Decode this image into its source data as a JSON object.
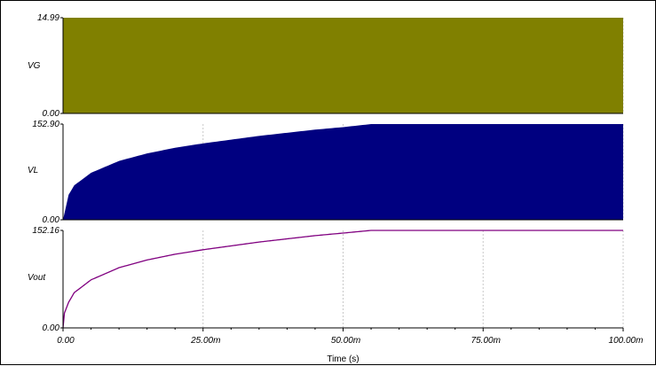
{
  "chart_data": [
    {
      "type": "area",
      "series": [
        {
          "name": "VG",
          "x": [
            0,
            100
          ],
          "y": [
            14.99,
            14.99
          ]
        }
      ],
      "y_tick_labels": [
        "14.99",
        "0.00"
      ],
      "ylim": [
        0,
        14.99
      ],
      "style": "dense-square-wave-envelope",
      "color": "#808000",
      "label_color": "#000000"
    },
    {
      "type": "area",
      "series": [
        {
          "name": "VL",
          "x": [
            0,
            1,
            2,
            5,
            10,
            15,
            20,
            25,
            30,
            35,
            40,
            45,
            50,
            55,
            56,
            60,
            70,
            80,
            90,
            100
          ],
          "y": [
            0,
            40,
            55,
            75,
            94,
            106,
            115,
            122,
            128,
            134,
            139,
            144,
            148,
            152.9,
            152.9,
            152.9,
            152.9,
            152.9,
            152.9,
            152.9
          ]
        }
      ],
      "y_tick_labels": [
        "152.90",
        "0.00"
      ],
      "ylim": [
        0,
        152.9
      ],
      "style": "dense-pulse-envelope",
      "color": "#000080",
      "label_color": "#000080"
    },
    {
      "type": "line",
      "series": [
        {
          "name": "Vout",
          "x": [
            0,
            0.2,
            1,
            2,
            5,
            10,
            15,
            20,
            25,
            30,
            35,
            40,
            45,
            50,
            55,
            56,
            60,
            70,
            80,
            90,
            100
          ],
          "y": [
            0,
            22,
            40,
            55,
            75,
            94,
            106,
            115,
            122,
            128,
            134,
            139,
            144,
            148,
            152.16,
            152.16,
            152.16,
            152.16,
            152.16,
            152.16,
            152.16
          ]
        }
      ],
      "y_tick_labels": [
        "152.16",
        "0.00"
      ],
      "ylim": [
        0,
        152.16
      ],
      "color": "#800080",
      "label_color": "#800080"
    }
  ],
  "x_axis": {
    "label": "Time (s)",
    "xlim": [
      0,
      100
    ],
    "tick_labels": [
      "0.00",
      "25.00m",
      "50.00m",
      "75.00m",
      "100.00m"
    ],
    "tick_values": [
      0,
      25,
      50,
      75,
      100
    ]
  },
  "grid": true,
  "frame_color": "#000000",
  "grid_color": "#c8c8c8"
}
